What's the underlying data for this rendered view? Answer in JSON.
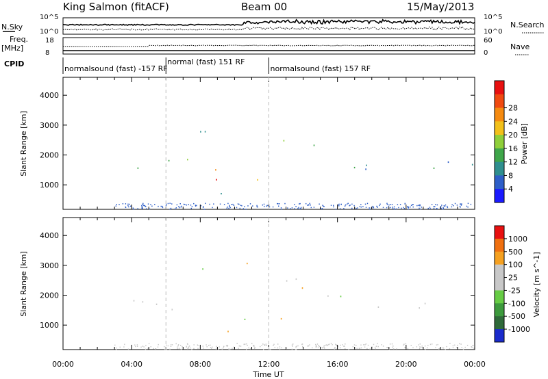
{
  "header": {
    "station": "King Salmon (fitACF)",
    "beam": "Beam 00",
    "date": "15/May/2013"
  },
  "top_panels": {
    "nsky_label": "N.Sky",
    "nsearch_label": "N.Search",
    "nsky_ticks": [
      "10^5",
      "10^0"
    ],
    "nsearch_ticks": [
      "10^5",
      "10^0"
    ],
    "freq_label_line1": "Freq.",
    "freq_label_line2": "[MHz]",
    "freq_ticks": [
      "18",
      "8"
    ],
    "nave_label": "Nave",
    "nave_ticks": [
      "60",
      "0"
    ],
    "cpid_label": "CPID",
    "cpid_segments": [
      {
        "label": "normalsound (fast) -157 RF",
        "start_hour": 0,
        "end_hour": 6
      },
      {
        "label": "normal (fast) 151 RF",
        "start_hour": 6,
        "end_hour": 12
      },
      {
        "label": "normalsound (fast) 157 RF",
        "start_hour": 12,
        "end_hour": 24
      }
    ]
  },
  "chart_data": [
    {
      "type": "heatmap",
      "name": "power",
      "ylabel": "Slant Range [km]",
      "xlabel": "",
      "xlim": [
        0,
        24
      ],
      "ylim": [
        180,
        4600
      ],
      "yticks": [
        "1000",
        "2000",
        "3000",
        "4000"
      ],
      "colorbar_label": "Power [dB]",
      "colorbar_ticks": [
        "4",
        "8",
        "12",
        "16",
        "20",
        "24",
        "28"
      ],
      "colorbar_colors": [
        "#1a1aff",
        "#2e5fc8",
        "#2f8f8f",
        "#3fa64a",
        "#8fcf3a",
        "#f2c01a",
        "#f58a10",
        "#f04a10",
        "#e81010"
      ],
      "backscatter_regions": [
        {
          "x": [
            3.0,
            11.0
          ],
          "y": [
            1500,
            1900
          ],
          "intensity": 0.45
        },
        {
          "x": [
            5.5,
            9.5
          ],
          "y": [
            1450,
            1700
          ],
          "intensity": 0.8
        },
        {
          "x": [
            8.5,
            10.5
          ],
          "y": [
            1050,
            1300
          ],
          "intensity": 0.95
        },
        {
          "x": [
            10.5,
            15.0
          ],
          "y": [
            1100,
            1500
          ],
          "intensity": 0.55
        },
        {
          "x": [
            12.5,
            15.0
          ],
          "y": [
            1800,
            2600
          ],
          "intensity": 0.3
        },
        {
          "x": [
            15.0,
            24.0
          ],
          "y": [
            1500,
            2100
          ],
          "intensity": 0.25
        },
        {
          "x": [
            7.5,
            11.0
          ],
          "y": [
            2700,
            3100
          ],
          "intensity": 0.2
        },
        {
          "x": [
            6.5,
            10.0
          ],
          "y": [
            700,
            1100
          ],
          "intensity": 0.35
        }
      ]
    },
    {
      "type": "heatmap",
      "name": "velocity",
      "ylabel": "Slant Range [km]",
      "xlabel": "Time UT",
      "xlim": [
        0,
        24
      ],
      "ylim": [
        180,
        4600
      ],
      "xticks": [
        "00:00",
        "04:00",
        "08:00",
        "12:00",
        "16:00",
        "20:00",
        "00:00"
      ],
      "yticks": [
        "1000",
        "2000",
        "3000",
        "4000"
      ],
      "colorbar_label": "Velocity [m s^-1]",
      "colorbar_ticks": [
        "1000",
        "500",
        "100",
        "25",
        "-25",
        "-100",
        "-500",
        "-1000"
      ],
      "colorbar_colors": [
        "#1a2bcc",
        "#2f6a3a",
        "#3d9a3d",
        "#66cc44",
        "#c8c8c8",
        "#c8c8c8",
        "#f5a020",
        "#f07010",
        "#e81010"
      ],
      "backscatter_regions": [
        {
          "x": [
            3.0,
            11.0
          ],
          "y": [
            1500,
            1900
          ],
          "velocity": "gray"
        },
        {
          "x": [
            7.0,
            10.5
          ],
          "y": [
            800,
            1300
          ],
          "velocity": "orange"
        },
        {
          "x": [
            10.5,
            14.0
          ],
          "y": [
            1050,
            1450
          ],
          "velocity": "green"
        },
        {
          "x": [
            12.5,
            15.0
          ],
          "y": [
            1800,
            2700
          ],
          "velocity": "gray"
        },
        {
          "x": [
            15.0,
            24.0
          ],
          "y": [
            1500,
            2100
          ],
          "velocity": "gray"
        },
        {
          "x": [
            7.5,
            11.0
          ],
          "y": [
            2700,
            3100
          ],
          "velocity": "gray"
        }
      ]
    }
  ]
}
